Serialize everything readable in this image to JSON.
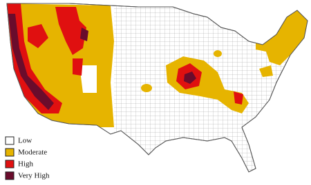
{
  "legend": {
    "items": [
      {
        "label": "Low",
        "color": "#ffffff"
      },
      {
        "label": "Moderate",
        "color": "#e6b400"
      },
      {
        "label": "High",
        "color": "#e01010"
      },
      {
        "label": "Very High",
        "color": "#6a0c2c"
      }
    ]
  }
}
